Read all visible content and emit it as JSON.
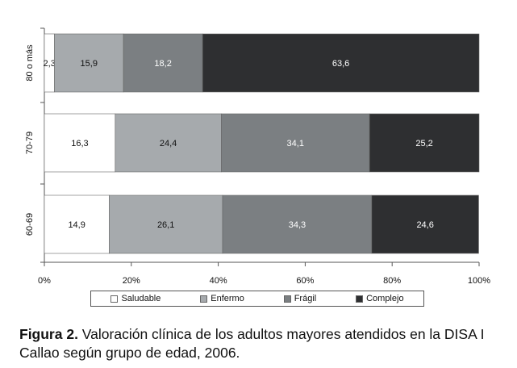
{
  "chart_data": {
    "type": "bar",
    "orientation": "horizontal",
    "stacked": "percent",
    "categories": [
      "80 o más",
      "70-79",
      "60-69"
    ],
    "series": [
      {
        "name": "Saludable",
        "color": "#ffffff",
        "values": [
          2.3,
          16.3,
          14.9
        ],
        "labels": [
          "2,3",
          "16,3",
          "14,9"
        ],
        "label_color": "#111111"
      },
      {
        "name": "Enfermo",
        "color": "#a6aaad",
        "values": [
          15.9,
          24.4,
          26.1
        ],
        "labels": [
          "15,9",
          "24,4",
          "26,1"
        ],
        "label_color": "#111111"
      },
      {
        "name": "Frágil",
        "color": "#7b7f82",
        "values": [
          18.2,
          34.1,
          34.3
        ],
        "labels": [
          "18,2",
          "34,1",
          "34,3"
        ],
        "label_color": "#ffffff"
      },
      {
        "name": "Complejo",
        "color": "#2e2f31",
        "values": [
          63.6,
          25.2,
          24.6
        ],
        "labels": [
          "63,6",
          "25,2",
          "24,6"
        ],
        "label_color": "#ffffff"
      }
    ],
    "xlim": [
      0,
      100
    ],
    "xticks": [
      "0%",
      "20%",
      "40%",
      "60%",
      "80%",
      "100%"
    ],
    "legend_position": "bottom",
    "grid": false
  },
  "caption": {
    "figure_label": "Figura 2.",
    "text": " Valoración clínica de los adultos mayores atendidos en la DISA I Callao según grupo de edad, 2006."
  }
}
